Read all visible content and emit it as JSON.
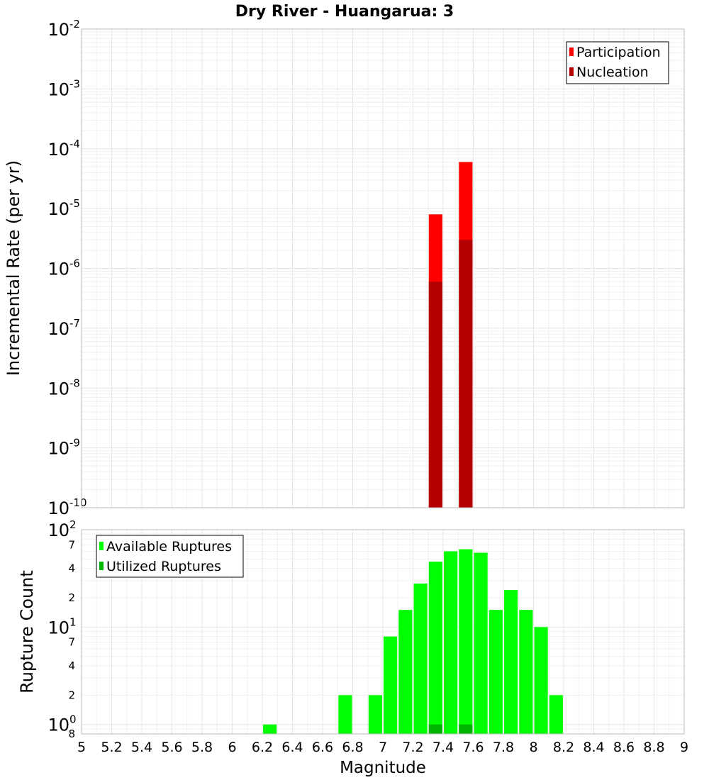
{
  "chart_data": {
    "type": "bar",
    "title": "Dry River - Huangarua: 3",
    "xlabel": "Magnitude",
    "xlim": [
      5,
      9
    ],
    "x_ticks": [
      "5",
      "5.2",
      "5.4",
      "5.6",
      "5.8",
      "6",
      "6.2",
      "6.4",
      "6.6",
      "6.8",
      "7",
      "7.2",
      "7.4",
      "7.6",
      "7.8",
      "8",
      "8.2",
      "8.4",
      "8.6",
      "8.8",
      "9"
    ],
    "panels": [
      {
        "id": "rate",
        "ylabel": "Incremental Rate (per yr)",
        "yscale": "log",
        "ylim": [
          1e-10,
          0.01
        ],
        "legend_position": "top-right",
        "y_ticks": [
          {
            "base": "10",
            "exp": "-10",
            "value": 1e-10
          },
          {
            "base": "10",
            "exp": "-9",
            "value": 1e-09
          },
          {
            "base": "10",
            "exp": "-8",
            "value": 1e-08
          },
          {
            "base": "10",
            "exp": "-7",
            "value": 1e-07
          },
          {
            "base": "10",
            "exp": "-6",
            "value": 1e-06
          },
          {
            "base": "10",
            "exp": "-5",
            "value": 1e-05
          },
          {
            "base": "10",
            "exp": "-4",
            "value": 0.0001
          },
          {
            "base": "10",
            "exp": "-3",
            "value": 0.001
          },
          {
            "base": "10",
            "exp": "-2",
            "value": 0.01
          }
        ],
        "series": [
          {
            "name": "Participation",
            "color": "#ff0000",
            "x": [
              7.35,
              7.55
            ],
            "values": [
              8e-06,
              6e-05
            ]
          },
          {
            "name": "Nucleation",
            "color": "#b40000",
            "x": [
              7.35,
              7.55
            ],
            "values": [
              6e-07,
              3e-06
            ]
          }
        ]
      },
      {
        "id": "count",
        "ylabel": "Rupture Count",
        "yscale": "log",
        "ylim": [
          0.8,
          100
        ],
        "legend_position": "top-left",
        "y_ticks": [
          {
            "base": "10",
            "exp": "0",
            "value": 1
          },
          {
            "base": "10",
            "exp": "1",
            "value": 10
          },
          {
            "base": "10",
            "exp": "2",
            "value": 100
          }
        ],
        "y_minor_labels": [
          {
            "label": "8",
            "value": 0.8
          },
          {
            "label": "2",
            "value": 2
          },
          {
            "label": "4",
            "value": 4
          },
          {
            "label": "7",
            "value": 7
          },
          {
            "label": "2",
            "value": 20
          },
          {
            "label": "4",
            "value": 40
          },
          {
            "label": "7",
            "value": 70
          }
        ],
        "series": [
          {
            "name": "Available Ruptures",
            "color": "#00ff00",
            "x": [
              6.25,
              6.75,
              6.95,
              7.05,
              7.15,
              7.25,
              7.35,
              7.45,
              7.55,
              7.65,
              7.75,
              7.85,
              7.95,
              8.05,
              8.15
            ],
            "values": [
              1,
              2,
              2,
              8,
              15,
              28,
              47,
              60,
              63,
              58,
              15,
              24,
              15,
              10,
              2
            ]
          },
          {
            "name": "Utilized Ruptures",
            "color": "#00b400",
            "x": [
              7.35,
              7.55
            ],
            "values": [
              1,
              1
            ]
          }
        ]
      }
    ]
  }
}
